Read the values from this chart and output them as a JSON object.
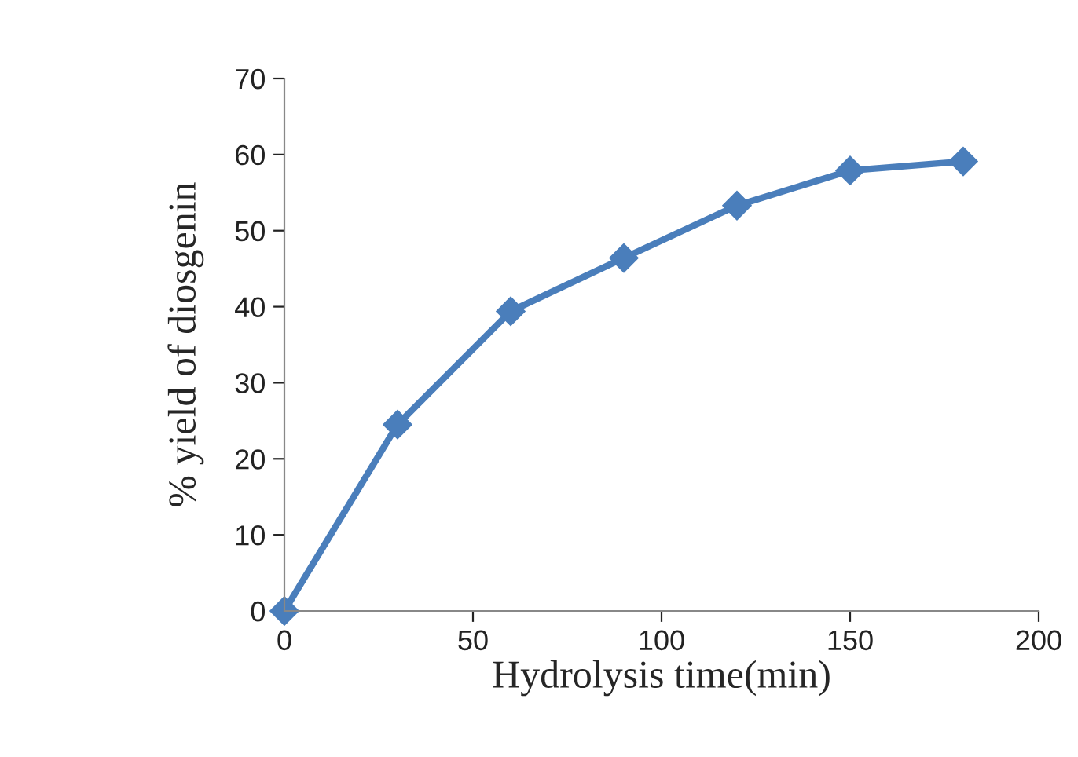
{
  "chart_data": {
    "type": "line",
    "xlabel": "Hydrolysis time(min)",
    "ylabel": "% yield of diosgenin",
    "x": [
      0,
      30,
      60,
      90,
      120,
      150,
      180
    ],
    "series": [
      {
        "color": "#4a7ebb",
        "values": [
          0,
          24.5,
          39.4,
          46.4,
          53.3,
          57.9,
          59.1
        ]
      }
    ],
    "xlim": [
      0,
      200
    ],
    "xticks": [
      0,
      50,
      100,
      150,
      200
    ],
    "ylim": [
      0,
      70
    ],
    "yticks": [
      0,
      10,
      20,
      30,
      40,
      50,
      60,
      70
    ],
    "marker": "diamond",
    "line_style": "solid",
    "grid": false,
    "legend": false
  }
}
